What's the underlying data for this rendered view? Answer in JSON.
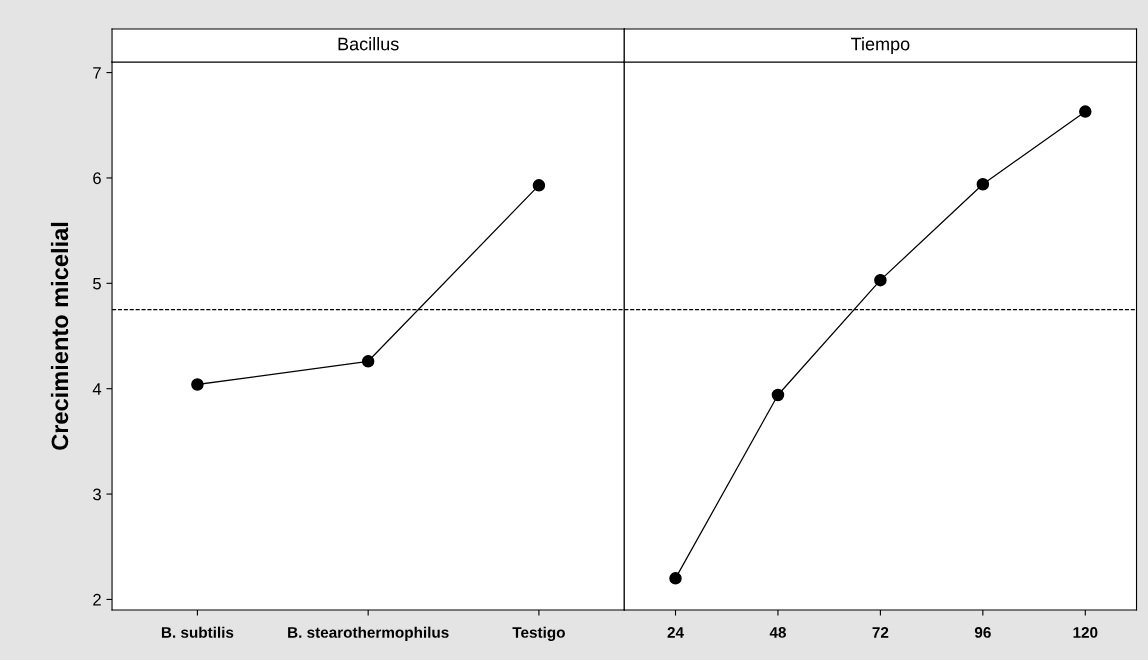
{
  "chart_data": [
    {
      "type": "line",
      "title": "Bacillus",
      "ylabel": "Crecimiento micelial",
      "categories": [
        "B. subtilis",
        "B. stearothermophilus",
        "Testigo"
      ],
      "series": [
        {
          "color": "#000000",
          "values": [
            4.04,
            4.26,
            5.93
          ]
        }
      ],
      "ylim": [
        1.9,
        7.1
      ],
      "yticks": [
        2,
        3,
        4,
        5,
        6,
        7
      ],
      "ref_lines": [
        {
          "axis": "y",
          "value": 4.75,
          "line_style": "dashed"
        }
      ],
      "marker": "circle",
      "line_style": "solid"
    },
    {
      "type": "line",
      "title": "Tiempo",
      "categories": [
        "24",
        "48",
        "72",
        "96",
        "120"
      ],
      "series": [
        {
          "color": "#000000",
          "values": [
            2.2,
            3.94,
            5.03,
            5.94,
            6.63
          ]
        }
      ],
      "ylim": [
        1.9,
        7.1
      ],
      "yticks": [
        2,
        3,
        4,
        5,
        6,
        7
      ],
      "tick_labels": "x",
      "ref_lines": [
        {
          "axis": "y",
          "value": 4.75,
          "line_style": "dashed"
        }
      ],
      "marker": "circle",
      "line_style": "solid"
    }
  ]
}
